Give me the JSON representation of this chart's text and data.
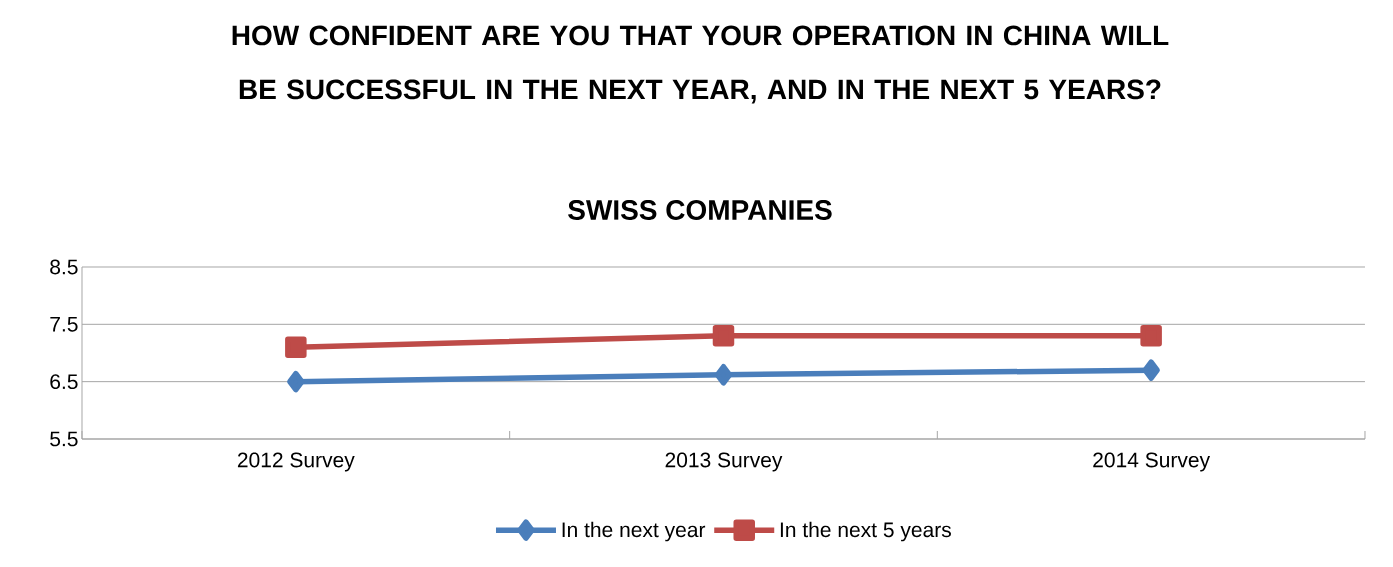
{
  "chart_data": {
    "type": "line",
    "title": "HOW CONFIDENT ARE YOU THAT YOUR OPERATION IN CHINA WILL BE SUCCESSFUL IN THE NEXT YEAR, AND IN THE NEXT 5 YEARS?",
    "subtitle": "SWISS COMPANIES",
    "categories": [
      "2012 Survey",
      "2013 Survey",
      "2014 Survey"
    ],
    "series": [
      {
        "name": "In the next year",
        "color": "#4a7ebb",
        "marker": "diamond",
        "values": [
          6.5,
          6.62,
          6.7
        ]
      },
      {
        "name": "In the next 5 years",
        "color": "#be4b48",
        "marker": "square",
        "values": [
          7.1,
          7.3,
          7.3
        ]
      }
    ],
    "ylim": [
      5.5,
      8.5
    ],
    "yticks": [
      5.5,
      6.5,
      7.5,
      8.5
    ],
    "grid": "y",
    "legend": "bottom",
    "line_style": "solid"
  }
}
